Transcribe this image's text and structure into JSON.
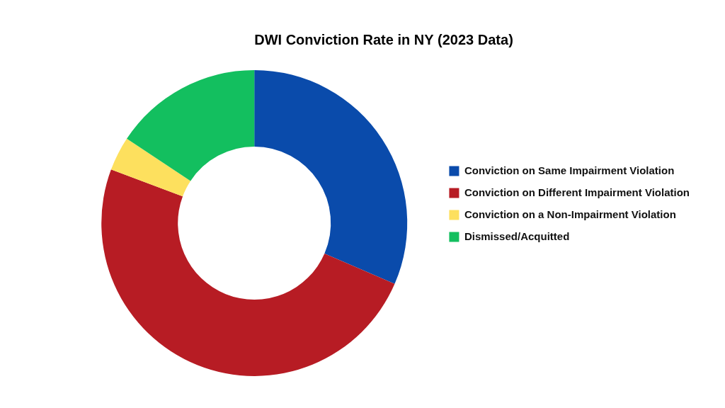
{
  "chart_data": {
    "type": "doughnut",
    "title": "DWI Conviction Rate in NY (2023 Data)",
    "categories": [
      "Conviction on Same Impairment Violation",
      "Conviction on Different Impairment Violation",
      "Conviction on a Non-Impairment Violation",
      "Dismissed/Acquitted"
    ],
    "values": [
      31.5,
      49.2,
      3.6,
      15.7
    ],
    "colors": [
      "#0a4bab",
      "#b71c24",
      "#fde05e",
      "#13bf5f"
    ],
    "legend": "right"
  }
}
